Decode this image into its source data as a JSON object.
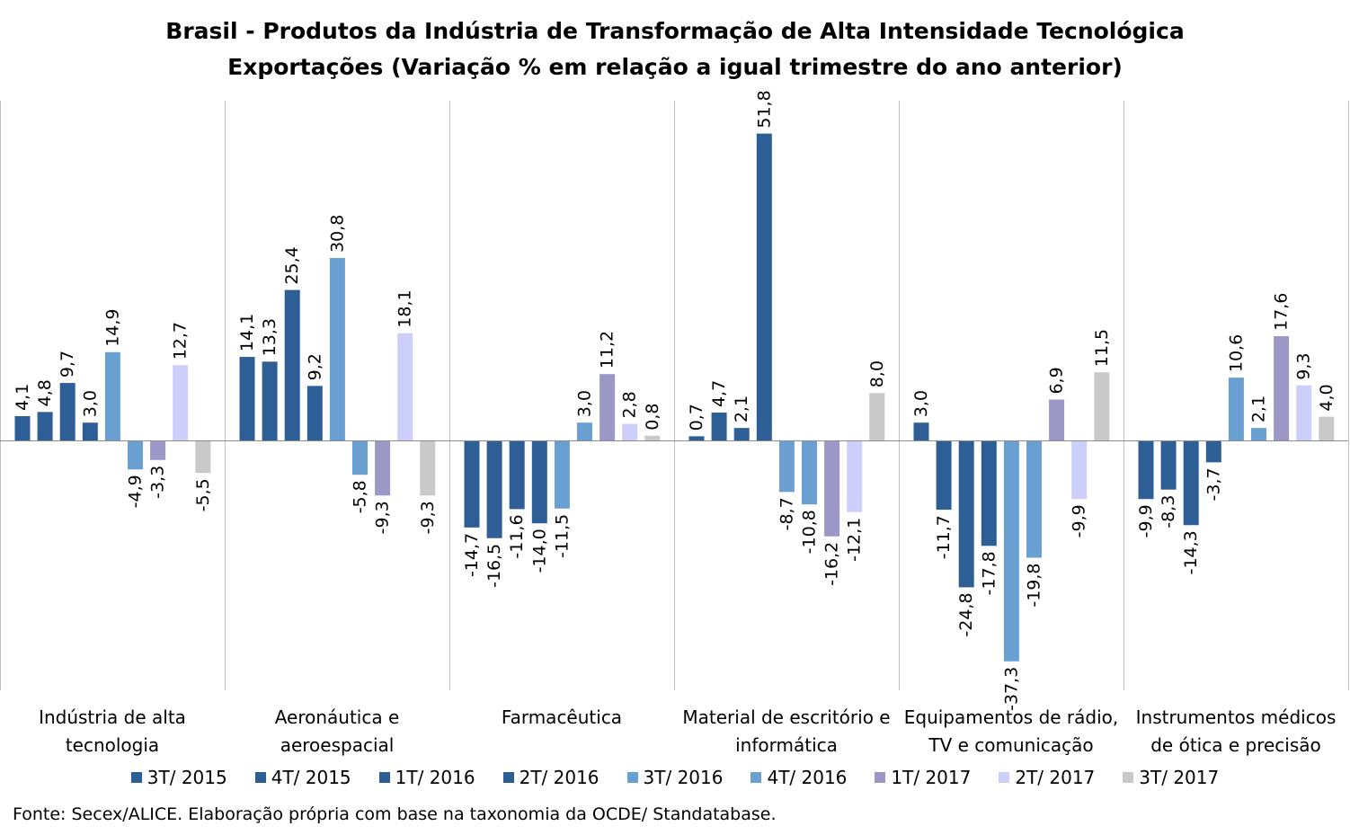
{
  "title_line1": "Brasil - Produtos da Indústria de Transformação de Alta Intensidade Tecnológica",
  "title_line2": "Exportações (Variação % em relação a igual trimestre do ano anterior)",
  "source": "Fonte: Secex/ALICE. Elaboração própria com base na taxonomia da OCDE/ Standatabase.",
  "chart_data": {
    "type": "bar",
    "categories": [
      [
        "Indústria de alta",
        "tecnologia"
      ],
      [
        "Aeronáutica e",
        "aeroespacial"
      ],
      [
        "Farmacêutica"
      ],
      [
        "Material de escritório e",
        "informática"
      ],
      [
        "Equipamentos de rádio,",
        "TV e comunicação"
      ],
      [
        "Instrumentos médicos",
        "de ótica e precisão"
      ]
    ],
    "series": [
      {
        "name": "3T/ 2015",
        "color": "#2e5e96",
        "values": [
          4.1,
          14.1,
          -14.7,
          0.7,
          3.0,
          -9.9
        ]
      },
      {
        "name": "4T/ 2015",
        "color": "#2e5e96",
        "values": [
          4.8,
          13.3,
          -16.5,
          4.7,
          -11.7,
          -8.3
        ]
      },
      {
        "name": "1T/ 2016",
        "color": "#2e5e96",
        "values": [
          9.7,
          25.4,
          -11.6,
          2.1,
          -24.8,
          -14.3
        ]
      },
      {
        "name": "2T/ 2016",
        "color": "#2e5e96",
        "values": [
          3.0,
          9.2,
          -14.0,
          51.8,
          -17.8,
          -3.7
        ]
      },
      {
        "name": "3T/ 2016",
        "color": "#6a9fd2",
        "values": [
          14.9,
          30.8,
          -11.5,
          -8.7,
          -37.3,
          10.6
        ]
      },
      {
        "name": "4T/ 2016",
        "color": "#6a9fd2",
        "values": [
          -4.9,
          -5.8,
          3.0,
          -10.8,
          -19.8,
          2.1
        ]
      },
      {
        "name": "1T/ 2017",
        "color": "#9b97c6",
        "values": [
          -3.3,
          -9.3,
          11.2,
          -16.2,
          6.9,
          17.6
        ]
      },
      {
        "name": "2T/ 2017",
        "color": "#cccffa",
        "values": [
          12.7,
          18.1,
          2.8,
          -12.1,
          -9.9,
          9.3
        ]
      },
      {
        "name": "3T/ 2017",
        "color": "#c9c9c9",
        "values": [
          -5.5,
          -9.3,
          0.8,
          8.0,
          11.5,
          4.0
        ]
      }
    ],
    "value_labels": [
      [
        "4,1",
        "14,1",
        "-14,7",
        "0,7",
        "3,0",
        "-9,9"
      ],
      [
        "4,8",
        "13,3",
        "-16,5",
        "4,7",
        "-11,7",
        "-8,3"
      ],
      [
        "9,7",
        "25,4",
        "-11,6",
        "2,1",
        "-24,8",
        "-14,3"
      ],
      [
        "3,0",
        "9,2",
        "-14,0",
        "51,8",
        "-17,8",
        "-3,7"
      ],
      [
        "14,9",
        "30,8",
        "-11,5",
        "-8,7",
        "-37,3",
        "10,6"
      ],
      [
        "-4,9",
        "-5,8",
        "3,0",
        "-10,8",
        "-19,8",
        "2,1"
      ],
      [
        "-3,3",
        "-9,3",
        "11,2",
        "-16,2",
        "6,9",
        "17,6"
      ],
      [
        "12,7",
        "18,1",
        "2,8",
        "-12,1",
        "-9,9",
        "9,3"
      ],
      [
        "-5,5",
        "-9,3",
        "0,8",
        "8,0",
        "11,5",
        "4,0"
      ]
    ],
    "ylim": [
      -41,
      57
    ],
    "grid": false,
    "legend_position": "bottom"
  }
}
